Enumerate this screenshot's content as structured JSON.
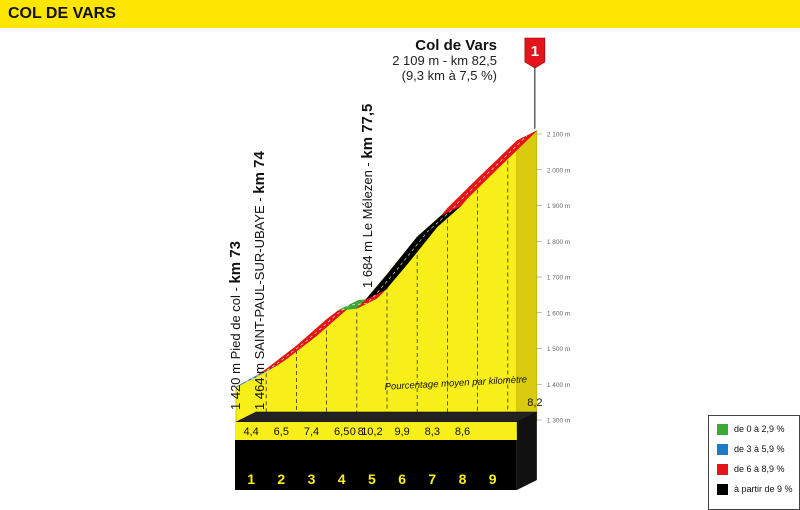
{
  "banner": {
    "title": "COL DE VARS"
  },
  "summit": {
    "name": "Col de Vars",
    "line1": "2 109 m - km 82,5",
    "line2": "(9,3 km à 7,5 %)",
    "flag_label": "1"
  },
  "waypoints": [
    {
      "text_normal": "1 420 m Pied de col - ",
      "text_bold": "km 73"
    },
    {
      "text_normal": "1 464 m SAINT-PAUL-SUR-UBAYE - ",
      "text_bold": "km 74"
    },
    {
      "text_normal": "1 684 m Le Mélezen - ",
      "text_bold": "km 77,5"
    }
  ],
  "annotation": "Pourcentage moyen par kilomètre",
  "legend": [
    {
      "label": "de 0 à 2,9 %",
      "color": "#3aaa35"
    },
    {
      "label": "de 3 à 5,9 %",
      "color": "#1f78c8"
    },
    {
      "label": "de 6 à 8,9 %",
      "color": "#e3151a"
    },
    {
      "label": "à partir de 9 %",
      "color": "#000000"
    }
  ],
  "chart_data": {
    "type": "area",
    "title": "COL DE VARS",
    "ylim": [
      1300,
      2100
    ],
    "ytick_labels": [
      "1 300 m",
      "1 400 m",
      "1 500 m",
      "1 600 m",
      "1 700 m",
      "1 800 m",
      "1 900 m",
      "2 000 m",
      "2 100 m"
    ],
    "yticks": [
      1300,
      1400,
      1500,
      1600,
      1700,
      1800,
      1900,
      2000,
      2100
    ],
    "km_labels": [
      "1",
      "2",
      "3",
      "4",
      "5",
      "6",
      "7",
      "8",
      "9"
    ],
    "gradient_labels": [
      "4,4",
      "6,5",
      "7,4",
      "6,5",
      "0",
      "8",
      "10,2",
      "9,9",
      "8,3",
      "8,6",
      "8,2"
    ],
    "profile_points": [
      {
        "km": 0.0,
        "alt": 1420
      },
      {
        "km": 0.7,
        "alt": 1453
      },
      {
        "km": 1.0,
        "alt": 1470
      },
      {
        "km": 2.0,
        "alt": 1535
      },
      {
        "km": 3.0,
        "alt": 1609
      },
      {
        "km": 3.4,
        "alt": 1635
      },
      {
        "km": 4.0,
        "alt": 1640
      },
      {
        "km": 4.3,
        "alt": 1665
      },
      {
        "km": 5.0,
        "alt": 1735
      },
      {
        "km": 6.0,
        "alt": 1840
      },
      {
        "km": 6.8,
        "alt": 1900
      },
      {
        "km": 7.0,
        "alt": 1920
      },
      {
        "km": 8.0,
        "alt": 2003
      },
      {
        "km": 9.3,
        "alt": 2109
      }
    ],
    "segments": [
      {
        "from_km": 0.0,
        "to_km": 0.7,
        "category": "de 3 à 5,9 %",
        "color": "#1f78c8"
      },
      {
        "from_km": 0.7,
        "to_km": 3.4,
        "category": "de 6 à 8,9 %",
        "color": "#e3151a"
      },
      {
        "from_km": 3.4,
        "to_km": 4.0,
        "category": "de 0 à 2,9 %",
        "color": "#3aaa35"
      },
      {
        "from_km": 4.0,
        "to_km": 4.3,
        "category": "de 6 à 8,9 %",
        "color": "#e3151a"
      },
      {
        "from_km": 4.3,
        "to_km": 6.8,
        "category": "à partir de 9 %",
        "color": "#000000"
      },
      {
        "from_km": 6.8,
        "to_km": 9.3,
        "category": "de 6 à 8,9 %",
        "color": "#e3151a"
      }
    ]
  }
}
